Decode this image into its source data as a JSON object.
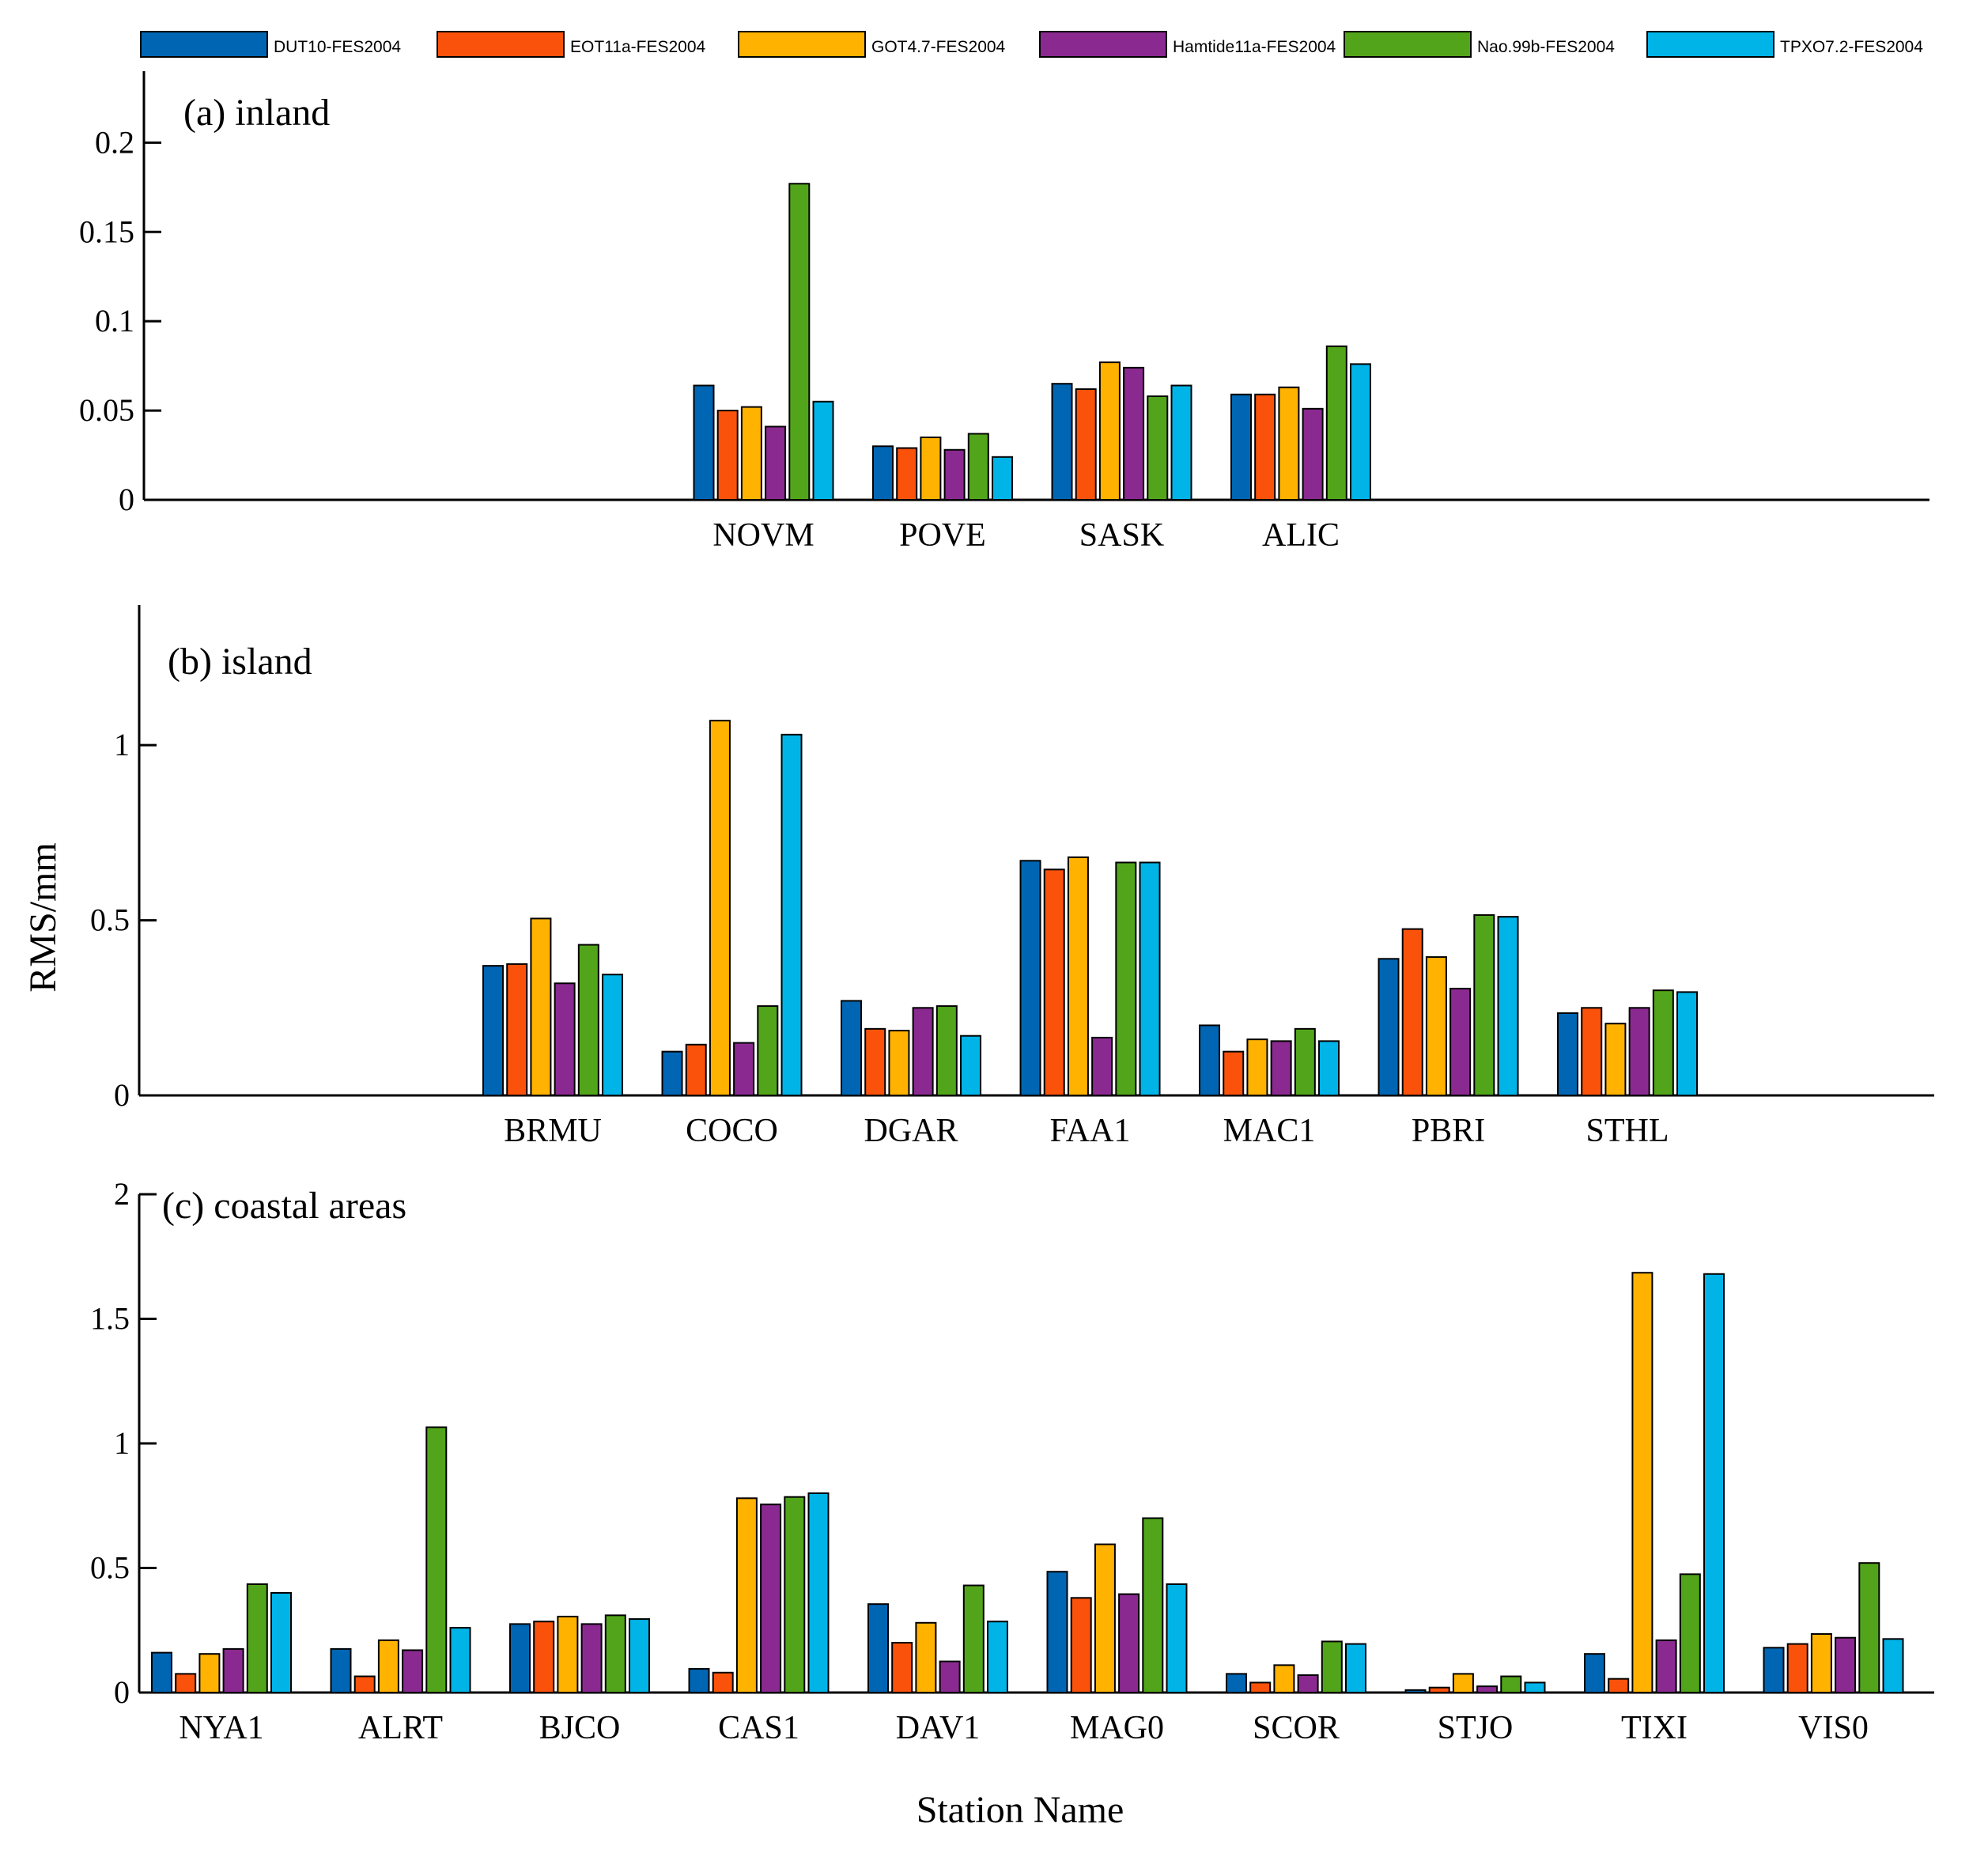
{
  "chart_data": {
    "type": "bar",
    "ylabel": "RMS/mm",
    "xlabel": "Station Name",
    "series_names": [
      "DUT10-FES2004",
      "EOT11a-FES2004",
      "GOT4.7-FES2004",
      "Hamtide11a-FES2004",
      "Nao.99b-FES2004",
      "TPXO7.2-FES2004"
    ],
    "colors": [
      "#0066b3",
      "#fa520a",
      "#ffb200",
      "#8a2a90",
      "#52a51a",
      "#00b4e8"
    ],
    "legend_position": "top",
    "panels": [
      {
        "title": "(a) inland",
        "ylim": [
          0,
          0.24
        ],
        "yticks": [
          0,
          0.05,
          0.1,
          0.15,
          0.2
        ],
        "ytick_labels": [
          "0",
          "0.05",
          "0.1",
          "0.15",
          "0.2"
        ],
        "categories": [
          "NOVM",
          "POVE",
          "SASK",
          "ALIC"
        ],
        "slot_offset": 3,
        "total_slots": 10,
        "values": [
          [
            0.064,
            0.05,
            0.052,
            0.041,
            0.177,
            0.055
          ],
          [
            0.03,
            0.029,
            0.035,
            0.028,
            0.037,
            0.024
          ],
          [
            0.065,
            0.062,
            0.077,
            0.074,
            0.058,
            0.064
          ],
          [
            0.059,
            0.059,
            0.063,
            0.051,
            0.086,
            0.076
          ]
        ]
      },
      {
        "title": "(b) island",
        "ylim": [
          0,
          1.4
        ],
        "yticks": [
          0,
          0.5,
          1
        ],
        "ytick_labels": [
          "0",
          "0.5",
          "1"
        ],
        "categories": [
          "BRMU",
          "COCO",
          "DGAR",
          "FAA1",
          "MAC1",
          "PBRI",
          "STHL"
        ],
        "slot_offset": 1.85,
        "total_slots": 10,
        "values": [
          [
            0.37,
            0.375,
            0.505,
            0.32,
            0.43,
            0.345
          ],
          [
            0.125,
            0.145,
            1.07,
            0.15,
            0.255,
            1.03
          ],
          [
            0.27,
            0.19,
            0.185,
            0.25,
            0.255,
            0.17
          ],
          [
            0.67,
            0.645,
            0.68,
            0.165,
            0.665,
            0.665
          ],
          [
            0.2,
            0.125,
            0.16,
            0.155,
            0.19,
            0.155
          ],
          [
            0.39,
            0.475,
            0.395,
            0.305,
            0.515,
            0.51
          ],
          [
            0.235,
            0.25,
            0.205,
            0.25,
            0.3,
            0.295
          ]
        ]
      },
      {
        "title": "(c) coastal areas",
        "ylim": [
          0,
          2
        ],
        "yticks": [
          0,
          0.5,
          1,
          1.5,
          2
        ],
        "ytick_labels": [
          "0",
          "0.5",
          "1",
          "1.5",
          "2"
        ],
        "categories": [
          "NYA1",
          "ALRT",
          "BJCO",
          "CAS1",
          "DAV1",
          "MAG0",
          "SCOR",
          "STJO",
          "TIXI",
          "VIS0"
        ],
        "slot_offset": 0,
        "total_slots": 10,
        "values": [
          [
            0.16,
            0.075,
            0.155,
            0.175,
            0.435,
            0.4
          ],
          [
            0.175,
            0.065,
            0.21,
            0.17,
            1.065,
            0.26
          ],
          [
            0.275,
            0.285,
            0.305,
            0.275,
            0.31,
            0.295
          ],
          [
            0.095,
            0.08,
            0.78,
            0.755,
            0.785,
            0.8
          ],
          [
            0.355,
            0.2,
            0.28,
            0.125,
            0.43,
            0.285
          ],
          [
            0.485,
            0.38,
            0.595,
            0.395,
            0.7,
            0.435
          ],
          [
            0.075,
            0.04,
            0.11,
            0.07,
            0.205,
            0.195
          ],
          [
            0.01,
            0.02,
            0.075,
            0.025,
            0.065,
            0.04
          ],
          [
            0.155,
            0.055,
            1.685,
            0.21,
            0.475,
            1.68
          ],
          [
            0.18,
            0.195,
            0.235,
            0.22,
            0.52,
            0.215
          ]
        ]
      }
    ]
  }
}
